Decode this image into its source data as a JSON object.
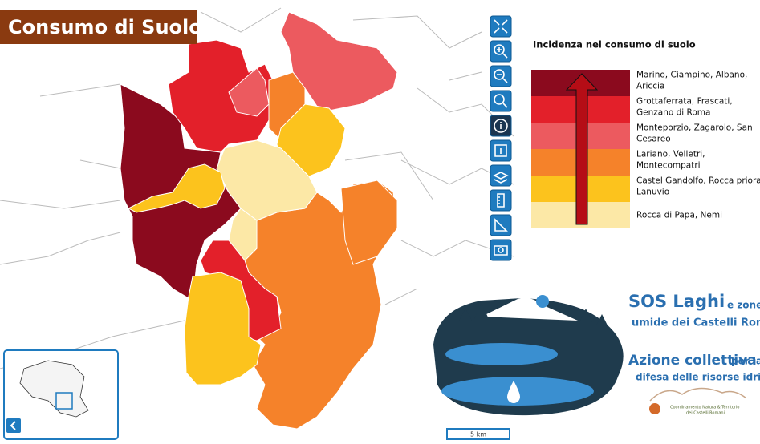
{
  "header": {
    "title": "Consumo di Suolo"
  },
  "legend": {
    "title": "Incidenza nel consumo di suolo",
    "items": [
      {
        "lines": [
          "Marino, Ciampino, Albano,",
          "Ariccia"
        ],
        "color": "#8b0a1e"
      },
      {
        "lines": [
          "Grottaferrata, Frascati,",
          "Genzano di Roma"
        ],
        "color": "#e3202a"
      },
      {
        "lines": [
          "Monteporzio, Zagarolo, San",
          "Cesareo"
        ],
        "color": "#ec5a5f"
      },
      {
        "lines": [
          "Lariano, Velletri,",
          "Montecompatri"
        ],
        "color": "#f5822a"
      },
      {
        "lines": [
          "Castel Gandolfo, Rocca priora,",
          "Lanuvio"
        ],
        "color": "#fcc31d"
      },
      {
        "lines": [
          "Rocca di Papa, Nemi"
        ],
        "color": "#fce8a6"
      }
    ]
  },
  "logo": {
    "line1": "SOS Laghi",
    "line1_small": "e zone",
    "line2": "umide dei Castelli Romani",
    "line3": "Azione collettiva",
    "line3_small": "per la",
    "line4": "difesa delle risorse idriche",
    "partner1": "Coordinamento Natura & Territorio",
    "partner2": "dei Castelli Romani"
  },
  "scale": {
    "label": "5 km"
  }
}
